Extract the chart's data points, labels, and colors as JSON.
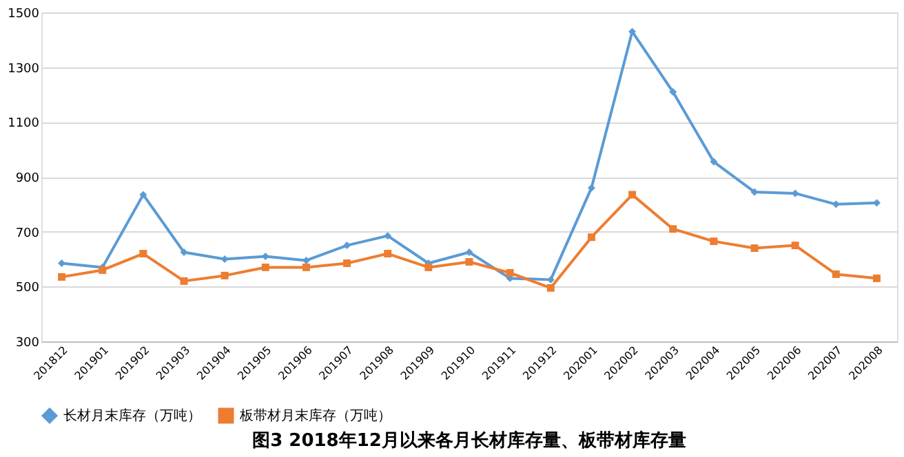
{
  "chart_data": {
    "type": "line",
    "title": "图3 2018年12月以来各月长材库存量、板带材库存量",
    "categories": [
      "201812",
      "201901",
      "201902",
      "201903",
      "201904",
      "201905",
      "201906",
      "201907",
      "201908",
      "201909",
      "201910",
      "201911",
      "201912",
      "202001",
      "202002",
      "202003",
      "202004",
      "202005",
      "202006",
      "202007",
      "202008"
    ],
    "series": [
      {
        "name": "长材月末库存（万吨）",
        "color": "#5b9bd5",
        "marker": "diamond",
        "values": [
          585,
          570,
          835,
          625,
          600,
          610,
          595,
          650,
          685,
          585,
          625,
          530,
          525,
          860,
          1430,
          1210,
          955,
          845,
          840,
          800,
          805
        ]
      },
      {
        "name": "板带材月末库存（万吨）",
        "color": "#ed7d31",
        "marker": "square",
        "values": [
          535,
          560,
          620,
          520,
          540,
          570,
          570,
          585,
          620,
          570,
          590,
          550,
          495,
          680,
          835,
          710,
          665,
          640,
          650,
          545,
          530
        ]
      }
    ],
    "ylim": [
      300,
      1500
    ],
    "yticks": [
      300,
      500,
      700,
      900,
      1100,
      1300,
      1500
    ],
    "grid": "y",
    "legend": "bottom",
    "line_style": "solid"
  }
}
